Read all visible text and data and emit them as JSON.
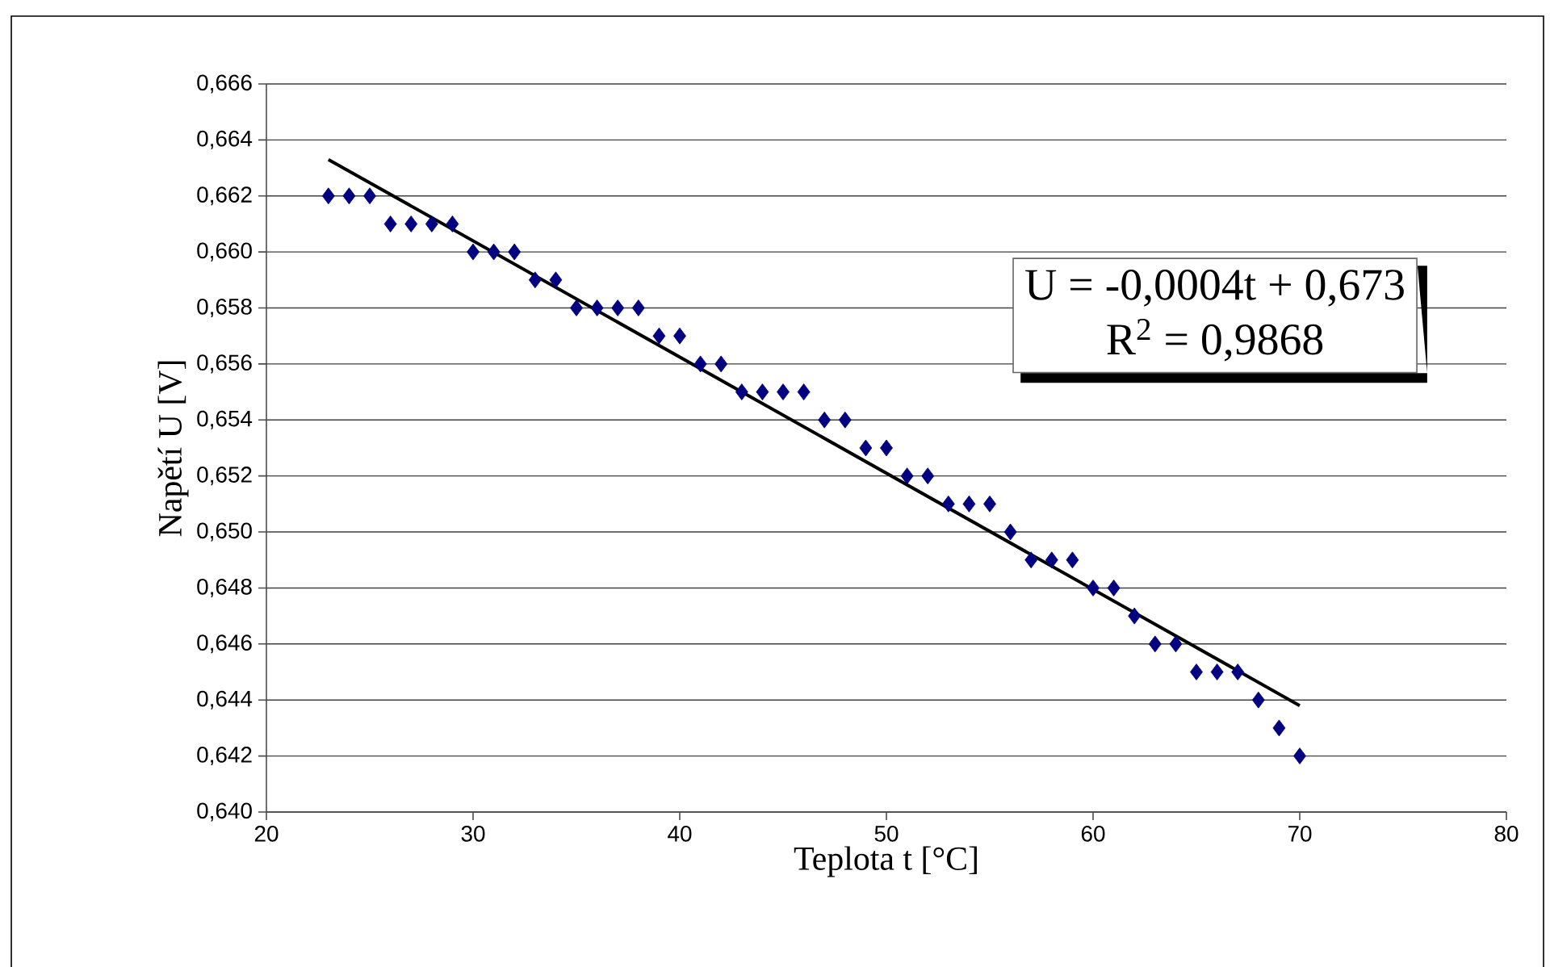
{
  "chart_data": {
    "type": "scatter",
    "xlabel": "Teplota t [°C]",
    "ylabel": "Napětí U [V]",
    "series": [
      {
        "color": "#000080",
        "marker": "diamond",
        "x": [
          23,
          24,
          25,
          26,
          27,
          28,
          29,
          30,
          31,
          32,
          33,
          34,
          35,
          36,
          37,
          38,
          39,
          40,
          41,
          42,
          43,
          44,
          45,
          46,
          47,
          48,
          49,
          50,
          51,
          52,
          53,
          54,
          55,
          56,
          57,
          58,
          59,
          60,
          61,
          62,
          63,
          64,
          65,
          66,
          67,
          68,
          69,
          70
        ],
        "values": [
          0.662,
          0.662,
          0.662,
          0.661,
          0.661,
          0.661,
          0.661,
          0.66,
          0.66,
          0.66,
          0.659,
          0.659,
          0.658,
          0.658,
          0.658,
          0.658,
          0.657,
          0.657,
          0.656,
          0.656,
          0.655,
          0.655,
          0.655,
          0.655,
          0.654,
          0.654,
          0.653,
          0.653,
          0.652,
          0.652,
          0.651,
          0.651,
          0.651,
          0.65,
          0.649,
          0.649,
          0.649,
          0.648,
          0.648,
          0.647,
          0.646,
          0.646,
          0.645,
          0.645,
          0.645,
          0.644,
          0.643,
          0.642
        ]
      },
      {
        "type": "line",
        "color": "#000000",
        "marker": "none",
        "x": [
          23,
          70
        ],
        "values": [
          0.6633,
          0.6438
        ]
      }
    ],
    "xlim": [
      20,
      80
    ],
    "xticks": [
      20,
      30,
      40,
      50,
      60,
      70,
      80
    ],
    "ylim": [
      0.64,
      0.666
    ],
    "yticks": [
      {
        "value": 0.64,
        "label": "0,640"
      },
      {
        "value": 0.642,
        "label": "0,642"
      },
      {
        "value": 0.644,
        "label": "0,644"
      },
      {
        "value": 0.646,
        "label": "0,646"
      },
      {
        "value": 0.648,
        "label": "0,648"
      },
      {
        "value": 0.65,
        "label": "0,650"
      },
      {
        "value": 0.652,
        "label": "0,652"
      },
      {
        "value": 0.654,
        "label": "0,654"
      },
      {
        "value": 0.656,
        "label": "0,656"
      },
      {
        "value": 0.658,
        "label": "0,658"
      },
      {
        "value": 0.66,
        "label": "0,660"
      },
      {
        "value": 0.662,
        "label": "0,662"
      },
      {
        "value": 0.664,
        "label": "0,664"
      },
      {
        "value": 0.666,
        "label": "0,666"
      }
    ],
    "grid": "y",
    "annotations": [
      "U = -0,0004t + 0,673",
      "R$^{2}$ = 0,9868"
    ]
  }
}
